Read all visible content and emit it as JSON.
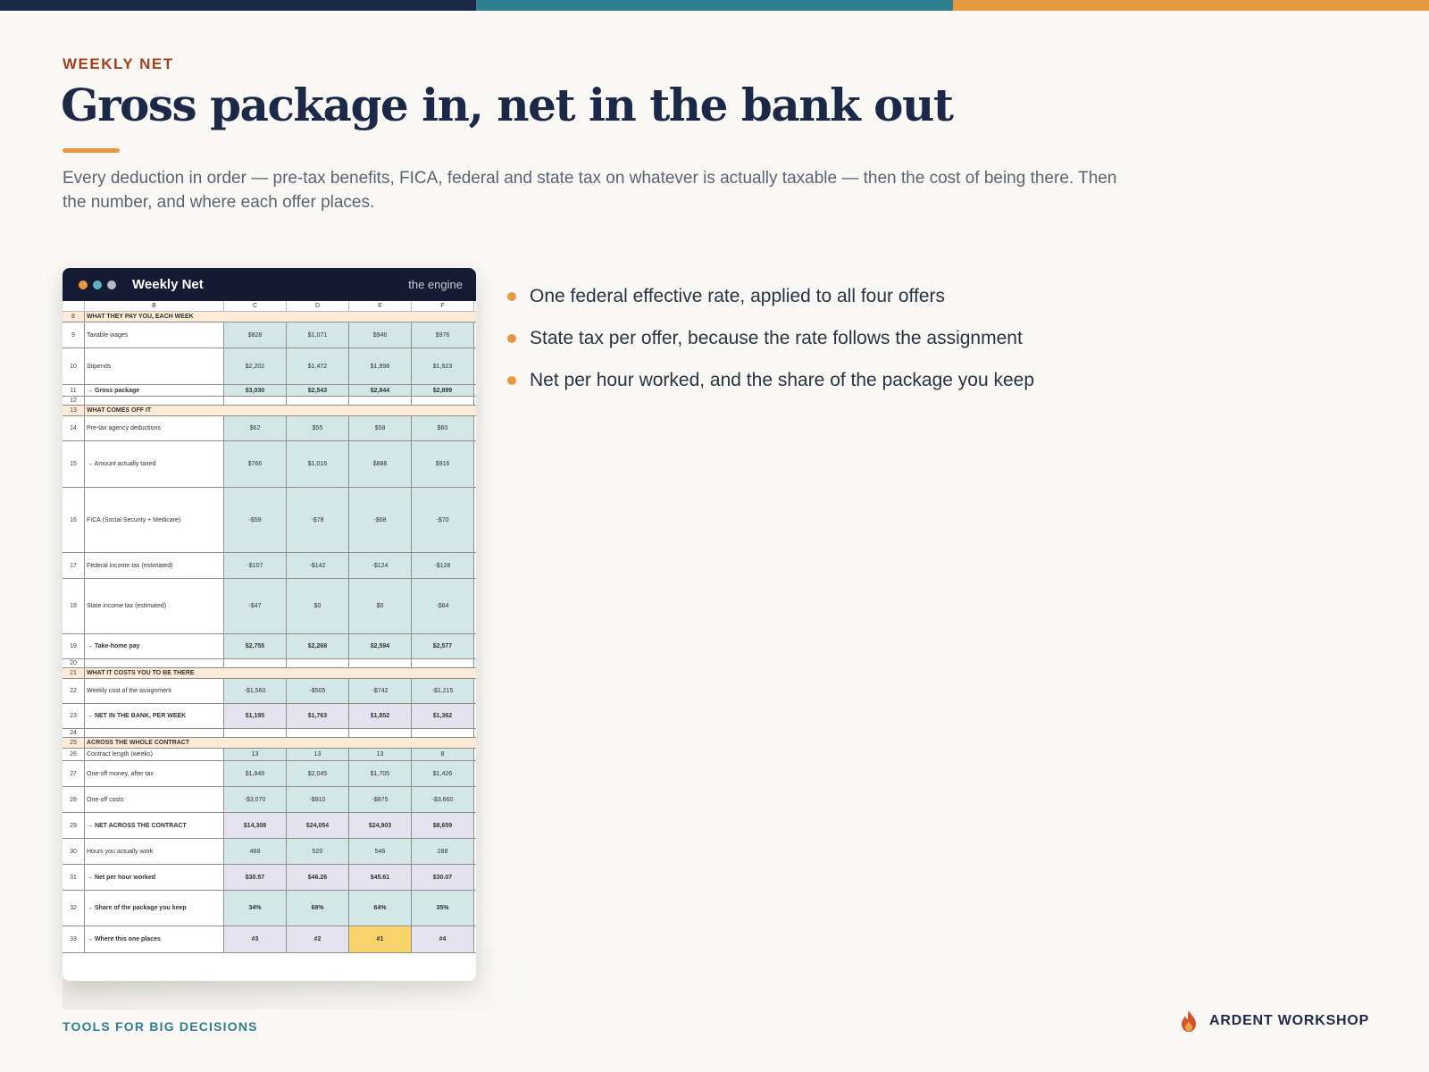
{
  "colors": {
    "navy": "#1b2848",
    "teal": "#2e7f90",
    "orange": "#e8983e",
    "rust": "#a3401c",
    "background": "#f9f8f4",
    "cell_teal": "#d2e7e6",
    "cell_lavender": "#e4e3ef",
    "cell_gold": "#f7d36a",
    "section_fill": "#fdebd7"
  },
  "eyebrow": "WEEKLY NET",
  "title": "Gross package in, net in the bank out",
  "subtitle": "Every deduction in order — pre-tax benefits, FICA, federal and state tax on whatever is actually taxable — then the cost of being there. Then the number, and where each offer places.",
  "window": {
    "title": "Weekly Net",
    "subtitle": "the engine",
    "dots": [
      "orange-dot",
      "teal-dot",
      "gray-dot"
    ]
  },
  "sheet": {
    "columns": [
      "B",
      "C",
      "D",
      "E",
      "F"
    ],
    "rows": [
      {
        "num": "8",
        "kind": "section",
        "label": "WHAT THEY PAY YOU, EACH WEEK"
      },
      {
        "num": "9",
        "kind": "data",
        "label": "Taxable wages",
        "values": [
          "$828",
          "$1,071",
          "$946",
          "$976"
        ]
      },
      {
        "num": "10",
        "kind": "data",
        "label": "Stipends",
        "values": [
          "$2,202",
          "$1,472",
          "$1,898",
          "$1,923"
        ]
      },
      {
        "num": "11",
        "kind": "bold",
        "label": "→  Gross package",
        "values": [
          "$3,030",
          "$2,543",
          "$2,844",
          "$2,899"
        ]
      },
      {
        "num": "12",
        "kind": "blank"
      },
      {
        "num": "13",
        "kind": "section",
        "label": "WHAT COMES OFF IT"
      },
      {
        "num": "14",
        "kind": "data",
        "label": "Pre-tax agency deductions",
        "values": [
          "$62",
          "$55",
          "$58",
          "$60"
        ]
      },
      {
        "num": "15",
        "kind": "data",
        "label": "→  Amount actually taxed",
        "values": [
          "$766",
          "$1,016",
          "$888",
          "$916"
        ]
      },
      {
        "num": "16",
        "kind": "data",
        "label": "FICA (Social Security + Medicare)",
        "values": [
          "-$59",
          "-$78",
          "-$68",
          "-$70"
        ]
      },
      {
        "num": "17",
        "kind": "data",
        "label": "Federal income tax (estimated)",
        "values": [
          "-$107",
          "-$142",
          "-$124",
          "-$128"
        ]
      },
      {
        "num": "18",
        "kind": "data",
        "label": "State income tax (estimated)",
        "values": [
          "-$47",
          "$0",
          "$0",
          "-$64"
        ]
      },
      {
        "num": "19",
        "kind": "bold",
        "label": "→  Take-home pay",
        "values": [
          "$2,755",
          "$2,268",
          "$2,594",
          "$2,577"
        ]
      },
      {
        "num": "20",
        "kind": "blank"
      },
      {
        "num": "21",
        "kind": "section",
        "label": "WHAT IT COSTS YOU TO BE THERE"
      },
      {
        "num": "22",
        "kind": "data",
        "label": "Weekly cost of the assignment",
        "values": [
          "-$1,560",
          "-$505",
          "-$742",
          "-$1,215"
        ]
      },
      {
        "num": "23",
        "kind": "bold",
        "label": "→  NET IN THE BANK, PER WEEK",
        "values": [
          "$1,195",
          "$1,763",
          "$1,852",
          "$1,362"
        ]
      },
      {
        "num": "24",
        "kind": "blank"
      },
      {
        "num": "25",
        "kind": "section",
        "label": "ACROSS THE WHOLE CONTRACT"
      },
      {
        "num": "26",
        "kind": "data",
        "label": "Contract length (weeks)",
        "values": [
          "13",
          "13",
          "13",
          "8"
        ]
      },
      {
        "num": "27",
        "kind": "data",
        "label": "One-off money, after tax",
        "values": [
          "$1,848",
          "$2,045",
          "$1,705",
          "$1,426"
        ]
      },
      {
        "num": "28",
        "kind": "data",
        "label": "One-off costs",
        "values": [
          "-$3,070",
          "-$910",
          "-$875",
          "-$3,660"
        ]
      },
      {
        "num": "29",
        "kind": "bold",
        "label": "→  NET ACROSS THE CONTRACT",
        "values": [
          "$14,308",
          "$24,054",
          "$24,903",
          "$8,659"
        ]
      },
      {
        "num": "30",
        "kind": "data",
        "label": "Hours you actually work",
        "values": [
          "468",
          "520",
          "546",
          "288"
        ]
      },
      {
        "num": "31",
        "kind": "bold",
        "label": "→  Net per hour worked",
        "values": [
          "$30.57",
          "$46.26",
          "$45.61",
          "$30.07"
        ]
      },
      {
        "num": "32",
        "kind": "bold",
        "label": "→  Share of the package you keep",
        "values": [
          "34%",
          "68%",
          "64%",
          "35%"
        ]
      },
      {
        "num": "33",
        "kind": "bold",
        "label": "→  Where this one places",
        "values": [
          "#3",
          "#2",
          "#1",
          "#4"
        ]
      }
    ]
  },
  "bullets": [
    "One federal effective rate, applied to all four offers",
    "State tax per offer, because the rate follows the assignment",
    "Net per hour worked, and the share of the package you keep"
  ],
  "footer": {
    "left": "TOOLS FOR BIG DECISIONS",
    "brand": "ARDENT WORKSHOP",
    "brand_icon": "flame-icon"
  }
}
